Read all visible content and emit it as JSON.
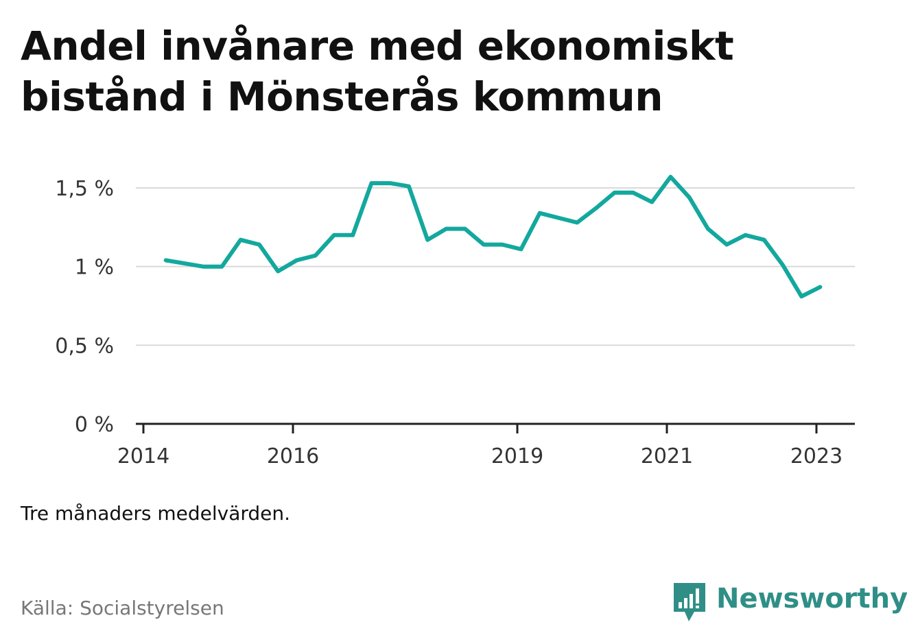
{
  "title": "Andel invånare med ekonomiskt bistånd i Mönsterås kommun",
  "note": "Tre månaders medelvärden.",
  "source": "Källa: Socialstyrelsen",
  "brand": {
    "name": "Newsworthy",
    "icon": "newsworthy-logo-icon",
    "color": "#2f8f87"
  },
  "colors": {
    "line": "#13a89e",
    "grid": "#d9d9d9",
    "axis": "#222222"
  },
  "chart_data": {
    "type": "line",
    "title": "Andel invånare med ekonomiskt bistånd i Mönsterås kommun",
    "xlabel": "",
    "ylabel": "",
    "grid": true,
    "ylim": [
      0,
      1.5
    ],
    "yticks": [
      0,
      0.5,
      1,
      1.5
    ],
    "ytick_labels": [
      "0 %",
      "0,5 %",
      "1 %",
      "1,5 %"
    ],
    "xlim": [
      2014.0,
      2023.5
    ],
    "xticks": [
      2014,
      2016,
      2019,
      2021,
      2023
    ],
    "xtick_labels": [
      "2014",
      "2016",
      "2019",
      "2021",
      "2023"
    ],
    "series": [
      {
        "x": [
          2014.3,
          2014.55,
          2014.8,
          2015.05,
          2015.3,
          2015.55,
          2015.8,
          2016.05,
          2016.3,
          2016.55,
          2016.8,
          2017.05,
          2017.3,
          2017.55,
          2017.8,
          2018.05,
          2018.3,
          2018.55,
          2018.8,
          2019.05,
          2019.3,
          2019.55,
          2019.8,
          2020.05,
          2020.3,
          2020.55,
          2020.8,
          2021.05,
          2021.3,
          2021.55,
          2021.8,
          2022.05,
          2022.3,
          2022.55,
          2022.8,
          2023.05
        ],
        "values": [
          1.04,
          1.02,
          1.0,
          1.0,
          1.17,
          1.14,
          0.97,
          1.04,
          1.07,
          1.2,
          1.2,
          1.53,
          1.53,
          1.51,
          1.17,
          1.24,
          1.24,
          1.14,
          1.14,
          1.11,
          1.34,
          1.31,
          1.28,
          1.37,
          1.47,
          1.47,
          1.41,
          1.57,
          1.44,
          1.24,
          1.14,
          1.2,
          1.17,
          1.01,
          0.81,
          0.87
        ]
      }
    ]
  }
}
